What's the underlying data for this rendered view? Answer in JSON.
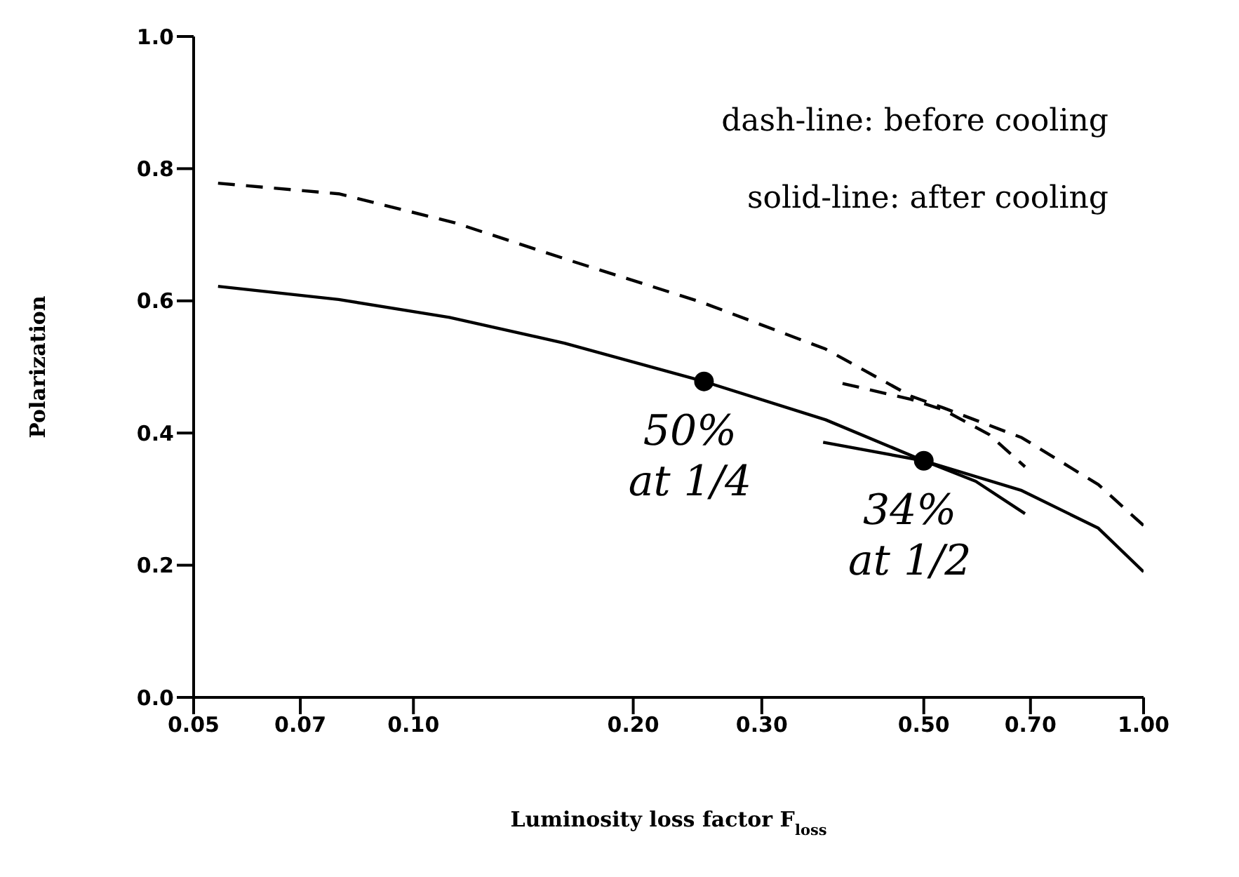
{
  "chart_data": {
    "type": "line",
    "xlabel": "Luminosity loss factor F$_{loss}$",
    "ylabel": "Polarization",
    "log": "x",
    "xlim": [
      0.05,
      1
    ],
    "ylim": [
      0,
      1
    ],
    "xticks": [
      0.05,
      0.07,
      {
        "value": 0.1,
        "label": "0.10"
      },
      {
        "value": 0.2,
        "label": "0.20"
      },
      {
        "value": 0.3,
        "label": "0.30"
      },
      {
        "value": 0.5,
        "label": "0.50"
      },
      {
        "value": 0.7,
        "label": "0.70"
      },
      {
        "value": 1,
        "label": "1.00"
      }
    ],
    "yticks": [
      {
        "value": 0,
        "label": "0.0"
      },
      0.2,
      0.4,
      0.6,
      0.8,
      {
        "value": 1,
        "label": "1.0"
      }
    ],
    "grid": false,
    "legend": false,
    "marker": "none",
    "series": [
      {
        "line_style": "dashed",
        "color": "#000000",
        "x": [
          0.054,
          0.079,
          0.114,
          0.165,
          0.248,
          0.367,
          0.48,
          0.532,
          0.681,
          0.867,
          1
        ],
        "values": [
          0.778,
          0.762,
          0.718,
          0.66,
          0.598,
          0.527,
          0.456,
          0.438,
          0.393,
          0.322,
          0.26
        ]
      },
      {
        "line_style": "dashed",
        "color": "#000000",
        "x": [
          0.387,
          0.48,
          0.532,
          0.614,
          0.688
        ],
        "values": [
          0.475,
          0.451,
          0.435,
          0.398,
          0.349
        ]
      },
      {
        "line_style": "solid",
        "color": "#000000",
        "x": [
          0.054,
          0.079,
          0.112,
          0.161,
          0.25,
          0.367,
          0.5,
          0.681,
          0.867,
          1
        ],
        "values": [
          0.622,
          0.602,
          0.575,
          0.536,
          0.478,
          0.42,
          0.358,
          0.313,
          0.256,
          0.19
        ]
      },
      {
        "line_style": "solid",
        "color": "#000000",
        "x": [
          0.364,
          0.5,
          0.589,
          0.688
        ],
        "values": [
          0.386,
          0.358,
          0.327,
          0.278
        ]
      },
      {
        "type": "scatter",
        "marker": "circle",
        "color": "#000000",
        "x": [
          0.25,
          0.5
        ],
        "values": [
          0.478,
          0.358
        ]
      }
    ],
    "annotations": [
      "dash-line: before cooling",
      "solid-line: after cooling",
      {
        "text": "50% at 1/4",
        "x": 0.25,
        "y": 0.478
      },
      {
        "text": "34% at 1/2",
        "x": 0.5,
        "y": 0.358
      }
    ]
  }
}
